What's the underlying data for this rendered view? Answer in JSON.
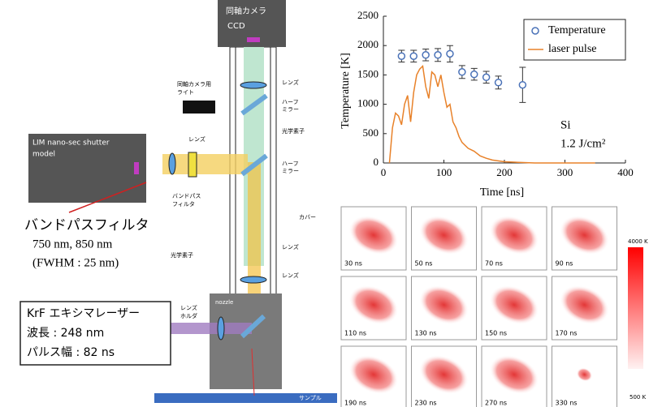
{
  "diagram": {
    "labels": [
      "同軸カメラ",
      "CCD",
      "同軸カメラ用",
      "ライト",
      "LIM nano-sec shutter",
      "model",
      "レンズ",
      "ハーフ",
      "ミラー",
      "光学素子",
      "レンズ",
      "ハーフ",
      "ミラー",
      "バンドパス",
      "フィルタ",
      "カバー",
      "光学素子",
      "レンズ",
      "nozzle",
      "レンズ",
      "ホルダ",
      "サンプル",
      "レンズ"
    ],
    "filter_note": [
      "バンドパスフィルタ",
      "750 nm, 850 nm",
      "(FWHM : 25 nm)"
    ],
    "laser_box": [
      "KrF エキシマレーザー",
      "波長 : 248 nm",
      "パルス幅 : 82 ns"
    ]
  },
  "chart_data": {
    "type": "scatter-line",
    "xlabel": "Time [ns]",
    "ylabel": "Temperature [K]",
    "annotations": [
      "Si",
      "1.2 J/cm²"
    ],
    "xlim": [
      0,
      400
    ],
    "xticks": [
      0,
      100,
      200,
      300,
      400
    ],
    "ylim": [
      0,
      2500
    ],
    "yticks": [
      0,
      500,
      1000,
      1500,
      2000,
      2500
    ],
    "legend": "upper right",
    "series": [
      {
        "name": "Temperature",
        "kind": "scatter",
        "color": "#4a72b8",
        "x": [
          30,
          50,
          70,
          90,
          110,
          130,
          150,
          170,
          190,
          230
        ],
        "values": [
          1820,
          1820,
          1840,
          1840,
          1860,
          1550,
          1510,
          1460,
          1370,
          1330
        ],
        "errors": [
          100,
          100,
          100,
          110,
          140,
          110,
          100,
          100,
          110,
          300
        ]
      },
      {
        "name": "laser pulse",
        "kind": "line",
        "color": "#e8822a",
        "x": [
          10,
          15,
          20,
          25,
          30,
          35,
          40,
          45,
          50,
          55,
          60,
          65,
          70,
          75,
          80,
          85,
          90,
          95,
          100,
          105,
          110,
          115,
          120,
          125,
          130,
          140,
          150,
          160,
          170,
          180,
          200,
          250,
          350
        ],
        "values": [
          0,
          600,
          850,
          800,
          650,
          1000,
          1150,
          700,
          1200,
          1500,
          1600,
          1650,
          1300,
          1100,
          1550,
          1500,
          1300,
          1500,
          1200,
          950,
          1000,
          700,
          600,
          450,
          350,
          250,
          200,
          120,
          80,
          50,
          20,
          0,
          0
        ]
      }
    ]
  },
  "heatmaps": {
    "frames": [
      "30 ns",
      "50 ns",
      "70 ns",
      "90 ns",
      "110 ns",
      "130 ns",
      "150 ns",
      "170 ns",
      "190 ns",
      "230 ns",
      "270 ns",
      "330 ns"
    ],
    "colorbar": [
      "4000 K",
      "500 K"
    ]
  }
}
